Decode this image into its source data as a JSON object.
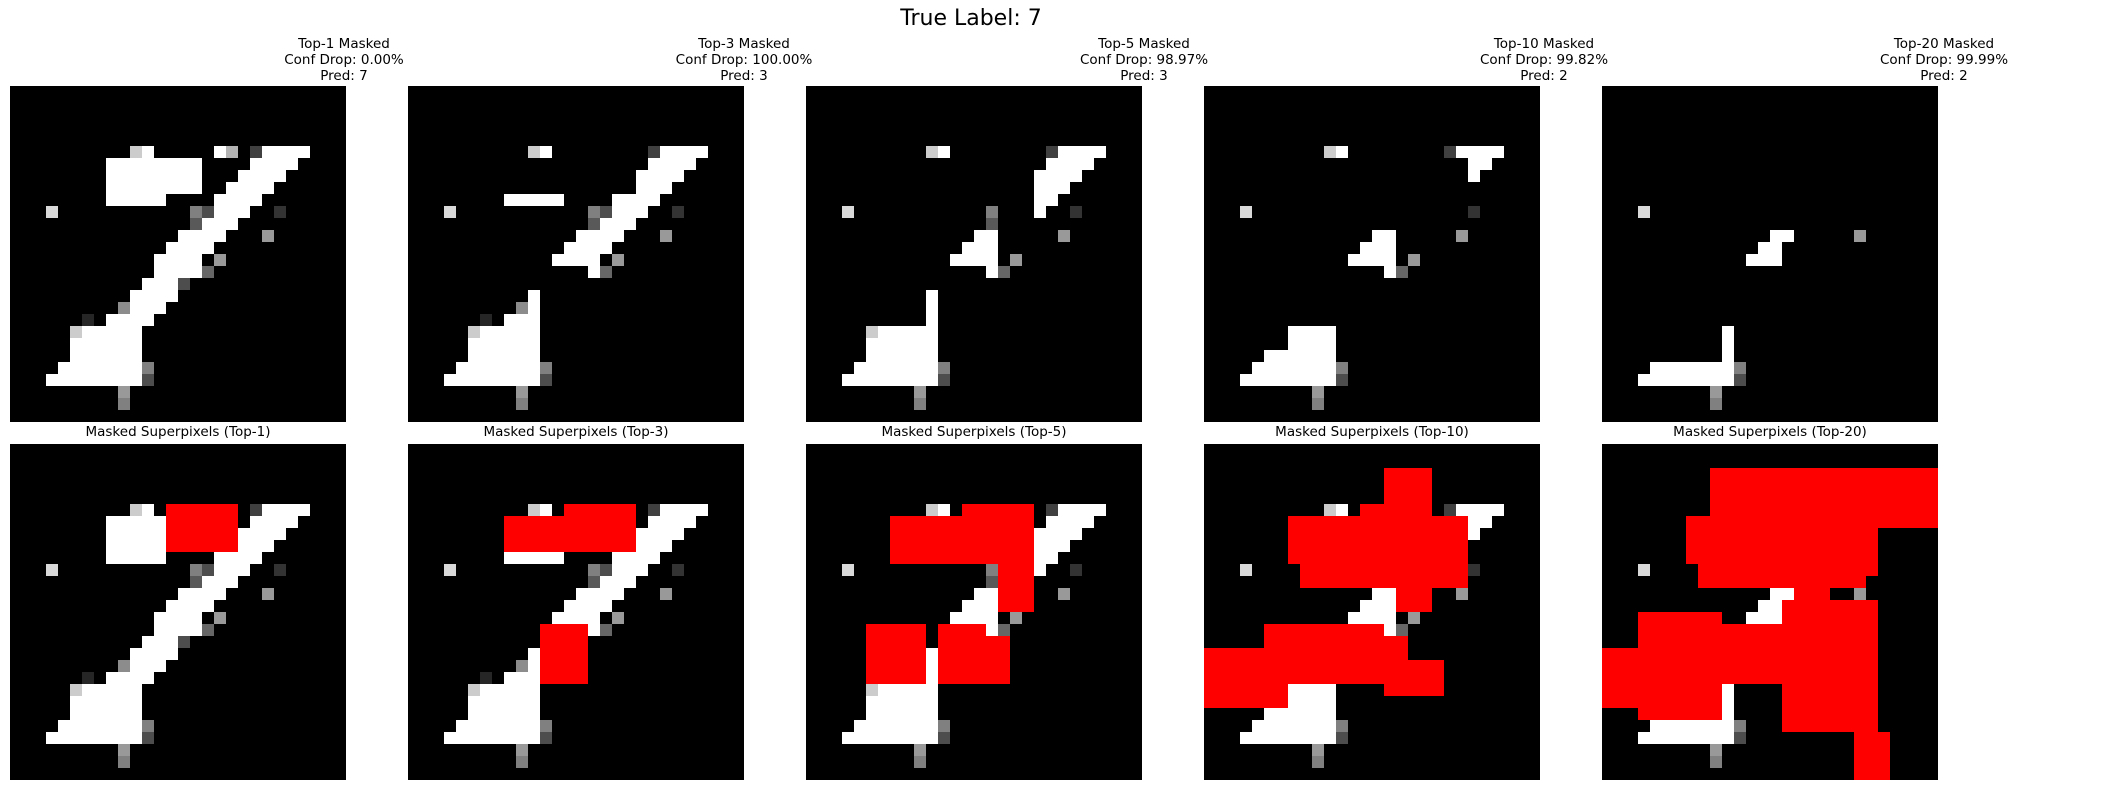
{
  "suptitle": "True Label: 7",
  "mask_color": "#ff0000",
  "top_row": [
    {
      "title": "Top-1 Masked",
      "conf": "Conf Drop: 0.00%",
      "pred": "Pred: 7"
    },
    {
      "title": "Top-3 Masked",
      "conf": "Conf Drop: 100.00%",
      "pred": "Pred: 3"
    },
    {
      "title": "Top-5 Masked",
      "conf": "Conf Drop: 98.97%",
      "pred": "Pred: 3"
    },
    {
      "title": "Top-10 Masked",
      "conf": "Conf Drop: 99.82%",
      "pred": "Pred: 2"
    },
    {
      "title": "Top-20 Masked",
      "conf": "Conf Drop: 99.99%",
      "pred": "Pred: 2"
    }
  ],
  "bottom_row": [
    {
      "title": "Masked Superpixels (Top-1)"
    },
    {
      "title": "Masked Superpixels (Top-3)"
    },
    {
      "title": "Masked Superpixels (Top-5)"
    },
    {
      "title": "Masked Superpixels (Top-10)"
    },
    {
      "title": "Masked Superpixels (Top-20)"
    }
  ]
}
